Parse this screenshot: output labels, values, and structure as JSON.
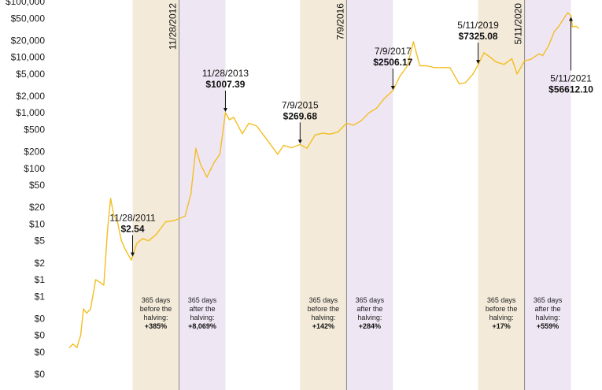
{
  "colors": {
    "line": "#F3BE21",
    "before_band": "#F3EAD9",
    "after_band": "#EFE6F4",
    "halving_line": "#888888",
    "arrow": "#111111"
  },
  "chart_data": {
    "type": "line",
    "y_scale": "log",
    "ylim": [
      0.02,
      100000
    ],
    "xlim": [
      "2010-07-17",
      "2021-07-15"
    ],
    "y_tick_labels": [
      "$100,000",
      "$50,000",
      "$20,000",
      "$10,000",
      "$5,000",
      "$2,000",
      "$1,000",
      "$500",
      "$200",
      "$100",
      "$50",
      "$20",
      "$10",
      "$5",
      "$2",
      "$1",
      "$1",
      "$0",
      "$0",
      "$0",
      "$0"
    ],
    "y_tick_values": [
      100000,
      50000,
      20000,
      10000,
      5000,
      2000,
      1000,
      500,
      200,
      100,
      50,
      20,
      10,
      5,
      2,
      1,
      0.5,
      0.2,
      0.1,
      0.05,
      0.02
    ],
    "series": [
      {
        "x": [
          "2010-07-18",
          "2010-08-15",
          "2010-09-15",
          "2010-10-15",
          "2010-11-06",
          "2010-12-01",
          "2011-01-01",
          "2011-02-10",
          "2011-03-15",
          "2011-04-15",
          "2011-05-15",
          "2011-06-08",
          "2011-07-01",
          "2011-08-01",
          "2011-09-01",
          "2011-10-01",
          "2011-11-18",
          "2011-12-31",
          "2012-02-15",
          "2012-04-01",
          "2012-06-01",
          "2012-08-15",
          "2012-10-15",
          "2012-11-28",
          "2013-01-15",
          "2013-03-01",
          "2013-04-09",
          "2013-05-15",
          "2013-07-05",
          "2013-09-01",
          "2013-10-15",
          "2013-11-28",
          "2013-12-30",
          "2014-02-01",
          "2014-04-10",
          "2014-06-01",
          "2014-08-01",
          "2014-10-01",
          "2015-01-14",
          "2015-03-01",
          "2015-05-01",
          "2015-07-09",
          "2015-09-01",
          "2015-11-04",
          "2016-01-01",
          "2016-03-01",
          "2016-05-01",
          "2016-07-09",
          "2016-09-01",
          "2016-11-01",
          "2017-01-01",
          "2017-03-01",
          "2017-05-01",
          "2017-07-09",
          "2017-09-01",
          "2017-11-01",
          "2017-12-17",
          "2018-02-06",
          "2018-04-01",
          "2018-06-01",
          "2018-08-01",
          "2018-10-01",
          "2018-12-15",
          "2019-02-01",
          "2019-04-01",
          "2019-05-11",
          "2019-06-26",
          "2019-08-01",
          "2019-10-01",
          "2019-12-01",
          "2020-02-01",
          "2020-03-13",
          "2020-05-11",
          "2020-07-01",
          "2020-09-01",
          "2020-10-01",
          "2020-11-15",
          "2020-12-31",
          "2021-02-01",
          "2021-04-14",
          "2021-05-11",
          "2021-05-23",
          "2021-06-20",
          "2021-07-12"
        ],
        "y": [
          0.06,
          0.07,
          0.06,
          0.1,
          0.3,
          0.25,
          0.3,
          1.0,
          0.9,
          0.8,
          8.0,
          29.0,
          15.0,
          11.0,
          5.0,
          3.5,
          2.25,
          4.5,
          5.5,
          5.0,
          6.5,
          11.0,
          11.5,
          12.5,
          14.0,
          35.0,
          230.0,
          120.0,
          70.0,
          130.0,
          180.0,
          1007.39,
          750.0,
          830.0,
          420.0,
          650.0,
          580.0,
          380.0,
          180.0,
          260.0,
          235.0,
          269.68,
          230.0,
          400.0,
          430.0,
          415.0,
          450.0,
          650.0,
          600.0,
          720.0,
          1000.0,
          1200.0,
          1800.0,
          2506.17,
          4500.0,
          7000.0,
          19000.0,
          7000.0,
          7000.0,
          6500.0,
          6500.0,
          6500.0,
          3300.0,
          3500.0,
          5000.0,
          7325.08,
          12000.0,
          10500.0,
          8200.0,
          7400.0,
          9400.0,
          5000.0,
          8600.0,
          9200.0,
          11500.0,
          10700.0,
          16000.0,
          29000.0,
          35000.0,
          63000.0,
          56612.1,
          35000.0,
          36000.0,
          33000.0
        ]
      }
    ],
    "bands": [
      {
        "type": "before",
        "start": "2011-11-28",
        "end": "2012-11-28",
        "text": [
          "365 days",
          "before the",
          "halving:"
        ],
        "pct": "+385%"
      },
      {
        "type": "after",
        "start": "2012-11-28",
        "end": "2013-11-28",
        "text": [
          "365 days",
          "after the",
          "halving:"
        ],
        "pct": "+8,069%"
      },
      {
        "type": "before",
        "start": "2015-07-09",
        "end": "2016-07-09",
        "text": [
          "365 days",
          "before the",
          "halving:"
        ],
        "pct": "+142%"
      },
      {
        "type": "after",
        "start": "2016-07-09",
        "end": "2017-07-09",
        "text": [
          "365 days",
          "after the",
          "halving:"
        ],
        "pct": "+284%"
      },
      {
        "type": "before",
        "start": "2019-05-11",
        "end": "2020-05-11",
        "text": [
          "365 days",
          "before the",
          "halving:"
        ],
        "pct": "+17%"
      },
      {
        "type": "after",
        "start": "2020-05-11",
        "end": "2021-05-11",
        "text": [
          "365 days",
          "after the",
          "halving:"
        ],
        "pct": "+559%"
      }
    ],
    "halvings": [
      {
        "date": "2012-11-28",
        "label": "11/28/2012"
      },
      {
        "date": "2016-07-09",
        "label": "7/9/2016"
      },
      {
        "date": "2020-05-11",
        "label": "5/11/2020"
      }
    ],
    "annotations": [
      {
        "date": "2011-11-28",
        "value": 2.54,
        "date_label": "11/28/2011",
        "price_label": "$2.54",
        "position": "above"
      },
      {
        "date": "2013-11-28",
        "value": 1007.39,
        "date_label": "11/28/2013",
        "price_label": "$1007.39",
        "position": "above"
      },
      {
        "date": "2015-07-09",
        "value": 269.68,
        "date_label": "7/9/2015",
        "price_label": "$269.68",
        "position": "above"
      },
      {
        "date": "2017-07-09",
        "value": 2506.17,
        "date_label": "7/9/2017",
        "price_label": "$2506.17",
        "position": "above"
      },
      {
        "date": "2019-05-11",
        "value": 7325.08,
        "date_label": "5/11/2019",
        "price_label": "$7325.08",
        "position": "above"
      },
      {
        "date": "2021-05-11",
        "value": 56612.1,
        "date_label": "5/11/2021",
        "price_label": "$56612.10",
        "position": "below"
      }
    ]
  }
}
